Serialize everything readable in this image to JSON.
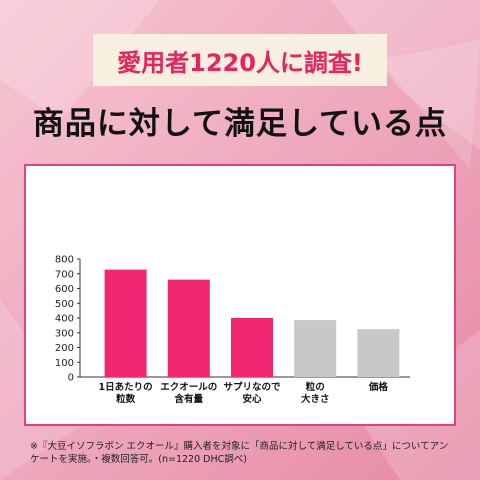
{
  "chart_data": {
    "type": "bar",
    "subtitle": "愛用者1220人に調査!",
    "title": "商品に対して満足している点",
    "categories": [
      [
        "1日あたりの",
        "粒数"
      ],
      [
        "エクオールの",
        "含有量"
      ],
      [
        "サプリなので",
        "安心"
      ],
      [
        "粒の",
        "大きさ"
      ],
      [
        "価格"
      ]
    ],
    "values": [
      728,
      660,
      400,
      386,
      325
    ],
    "colors": [
      "#f0266e",
      "#f0266e",
      "#f0266e",
      "#c8c8c8",
      "#c8c8c8"
    ],
    "ylim": [
      0,
      800
    ],
    "yticks": [
      0,
      100,
      200,
      300,
      400,
      500,
      600,
      700,
      800
    ],
    "footnote": "※『大豆イソフラボン エクオール』購入者を対象に「商品に対して満足している点」についてアンケートを実施。・複数回答可。(n=1220 DHC調べ)"
  }
}
